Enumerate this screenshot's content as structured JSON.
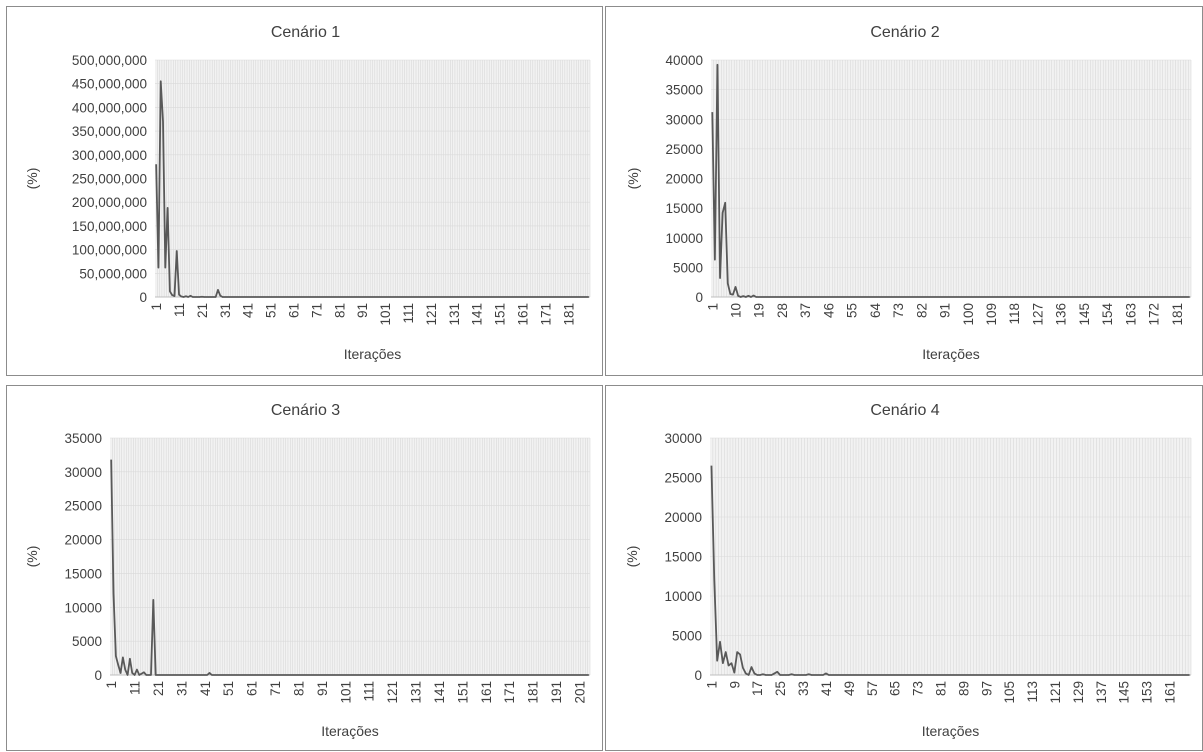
{
  "chart_data": [
    {
      "type": "line",
      "title": "Cenário 1",
      "xlabel": "Iterações",
      "ylabel": "(%)",
      "ylim": [
        0,
        500000000
      ],
      "yticks": [
        "0",
        "50,000,000",
        "100,000,000",
        "150,000,000",
        "200,000,000",
        "250,000,000",
        "300,000,000",
        "350,000,000",
        "400,000,000",
        "450,000,000",
        "500,000,000"
      ],
      "n": 190,
      "xstep": 10,
      "grid": true,
      "series": [
        {
          "x": [
            1,
            2,
            3,
            4,
            5,
            6,
            7,
            8,
            9,
            10,
            11,
            12,
            13,
            14,
            15,
            16,
            17,
            18,
            19,
            20,
            21,
            22,
            23,
            24,
            25,
            26,
            27,
            28,
            29,
            30,
            31,
            32,
            40,
            60,
            100,
            150,
            190
          ],
          "y": [
            280000000,
            62000000,
            455000000,
            370000000,
            62000000,
            188000000,
            12000000,
            4000000,
            2000000,
            97000000,
            5000000,
            1000000,
            0,
            1500000,
            0,
            2500000,
            0,
            0,
            0,
            0,
            500000,
            0,
            0,
            0,
            0,
            0,
            0,
            15000000,
            3000000,
            0,
            0,
            0,
            0,
            0,
            0,
            0,
            0
          ]
        }
      ]
    },
    {
      "type": "line",
      "title": "Cenário 2",
      "xlabel": "Iterações",
      "ylabel": "(%)",
      "ylim": [
        0,
        40000
      ],
      "yticks": [
        "0",
        "5000",
        "10000",
        "15000",
        "20000",
        "25000",
        "30000",
        "35000",
        "40000"
      ],
      "n": 186,
      "xstep": 9,
      "grid": true,
      "series": [
        {
          "x": [
            1,
            2,
            3,
            4,
            5,
            6,
            7,
            8,
            9,
            10,
            11,
            12,
            13,
            14,
            15,
            16,
            17,
            18,
            19,
            20,
            25,
            40,
            80,
            120,
            186
          ],
          "y": [
            31200,
            6300,
            39200,
            3200,
            14200,
            15900,
            2300,
            500,
            400,
            1700,
            200,
            0,
            150,
            0,
            200,
            0,
            250,
            0,
            0,
            0,
            0,
            0,
            0,
            0,
            0
          ]
        }
      ]
    },
    {
      "type": "line",
      "title": "Cenário 3",
      "xlabel": "Iterações",
      "ylabel": "(%)",
      "ylim": [
        0,
        35000
      ],
      "yticks": [
        "0",
        "5000",
        "10000",
        "15000",
        "20000",
        "25000",
        "30000",
        "35000"
      ],
      "n": 205,
      "xstep": 10,
      "grid": true,
      "series": [
        {
          "x": [
            1,
            2,
            3,
            4,
            5,
            6,
            7,
            8,
            9,
            10,
            11,
            12,
            13,
            14,
            15,
            16,
            17,
            18,
            19,
            20,
            21,
            22,
            40,
            42,
            43,
            44,
            60,
            100,
            150,
            205
          ],
          "y": [
            31800,
            12000,
            2800,
            1500,
            300,
            2600,
            800,
            0,
            2400,
            300,
            0,
            800,
            0,
            200,
            400,
            0,
            0,
            0,
            11100,
            0,
            0,
            0,
            0,
            0,
            300,
            0,
            0,
            0,
            0,
            0
          ]
        }
      ]
    },
    {
      "type": "line",
      "title": "Cenário 4",
      "xlabel": "Iterações",
      "ylabel": "(%)",
      "ylim": [
        0,
        30000
      ],
      "yticks": [
        "0",
        "5000",
        "10000",
        "15000",
        "20000",
        "25000",
        "30000"
      ],
      "n": 168,
      "xstep": 8,
      "grid": true,
      "series": [
        {
          "x": [
            1,
            2,
            3,
            4,
            5,
            6,
            7,
            8,
            9,
            10,
            11,
            12,
            13,
            14,
            15,
            16,
            17,
            18,
            19,
            20,
            21,
            22,
            23,
            24,
            25,
            26,
            27,
            28,
            29,
            30,
            31,
            32,
            33,
            34,
            35,
            36,
            37,
            38,
            39,
            40,
            41,
            42,
            60,
            100,
            168
          ],
          "y": [
            26500,
            12000,
            1800,
            4200,
            1500,
            2900,
            1200,
            1500,
            300,
            2900,
            2600,
            900,
            200,
            0,
            1000,
            200,
            0,
            0,
            100,
            0,
            0,
            0,
            200,
            400,
            0,
            0,
            0,
            0,
            100,
            0,
            0,
            0,
            0,
            0,
            100,
            0,
            0,
            0,
            0,
            0,
            200,
            0,
            0,
            0,
            0
          ]
        }
      ]
    }
  ]
}
